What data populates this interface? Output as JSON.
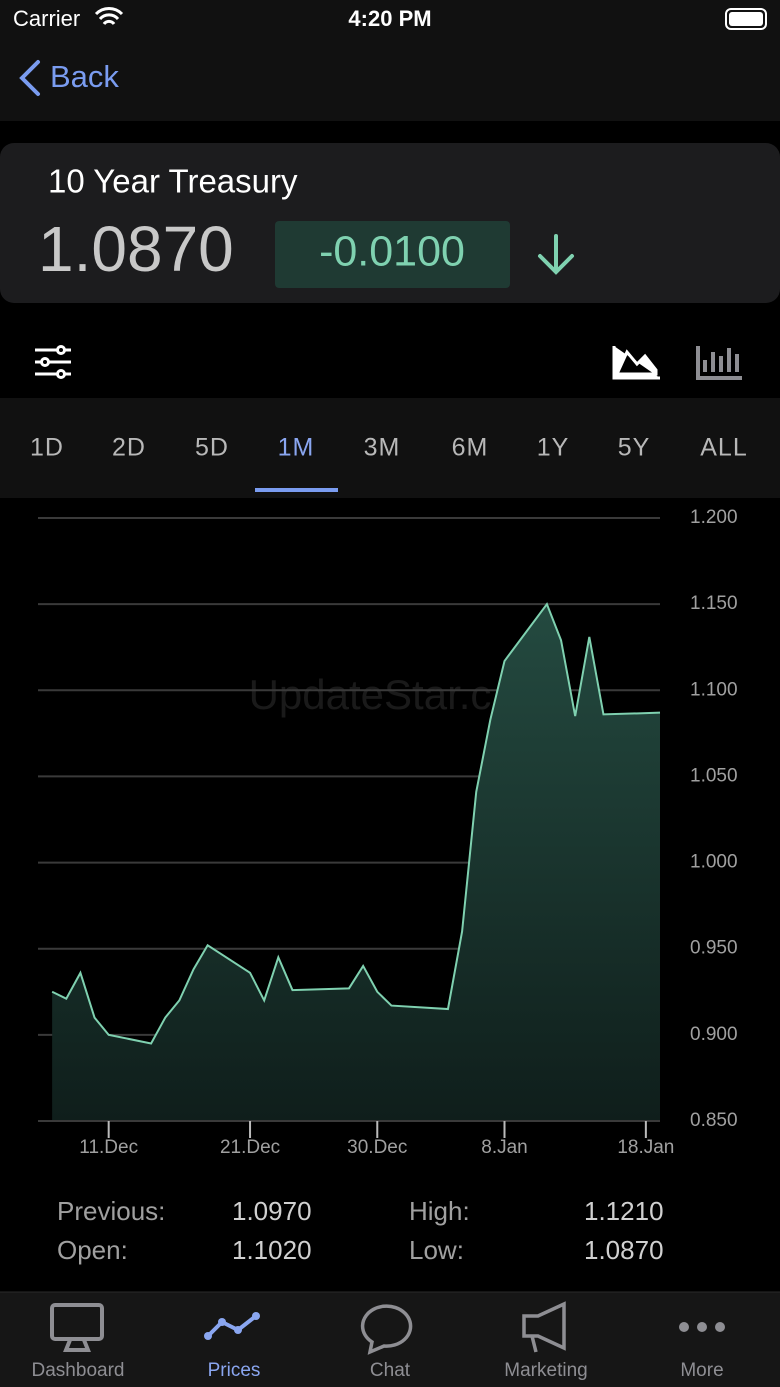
{
  "status_bar": {
    "carrier": "Carrier",
    "time": "4:20 PM"
  },
  "nav": {
    "back": "Back"
  },
  "quote": {
    "name": "10 Year Treasury",
    "price": "1.0870",
    "change": "-0.0100"
  },
  "ranges": [
    "1D",
    "2D",
    "5D",
    "1M",
    "3M",
    "6M",
    "1Y",
    "5Y",
    "ALL"
  ],
  "selected_range": "1M",
  "watermark": "UpdateStar.c",
  "chart_data": {
    "type": "area",
    "color": "#7fd1b0",
    "grid": true,
    "x": [
      "7.Dec",
      "8.Dec",
      "9.Dec",
      "10.Dec",
      "11.Dec",
      "14.Dec",
      "15.Dec",
      "16.Dec",
      "17.Dec",
      "18.Dec",
      "21.Dec",
      "22.Dec",
      "23.Dec",
      "24.Dec",
      "28.Dec",
      "29.Dec",
      "30.Dec",
      "31.Dec",
      "4.Jan",
      "5.Jan",
      "6.Jan",
      "7.Jan",
      "8.Jan",
      "11.Jan",
      "12.Jan",
      "13.Jan",
      "14.Jan",
      "15.Jan",
      "19.Jan"
    ],
    "values": [
      0.925,
      0.921,
      0.936,
      0.91,
      0.9,
      0.895,
      0.91,
      0.92,
      0.938,
      0.952,
      0.936,
      0.92,
      0.945,
      0.926,
      0.927,
      0.94,
      0.925,
      0.917,
      0.915,
      0.96,
      1.041,
      1.083,
      1.117,
      1.15,
      1.129,
      1.085,
      1.131,
      1.086,
      1.087
    ],
    "xlim": [
      "6.Dec",
      "19.Jan"
    ],
    "xticks": [
      "11.Dec",
      "21.Dec",
      "30.Dec",
      "8.Jan",
      "18.Jan"
    ],
    "ylim": [
      0.85,
      1.2
    ],
    "yticks": [
      {
        "value": 0.85,
        "label": "0.850"
      },
      {
        "value": 0.9,
        "label": "0.900"
      },
      {
        "value": 0.95,
        "label": "0.950"
      },
      {
        "value": 1.0,
        "label": "1.000"
      },
      {
        "value": 1.05,
        "label": "1.050"
      },
      {
        "value": 1.1,
        "label": "1.100"
      },
      {
        "value": 1.15,
        "label": "1.150"
      },
      {
        "value": 1.2,
        "label": "1.200"
      }
    ]
  },
  "stats": [
    [
      "Previous:",
      "1.0970",
      "High:",
      "1.1210"
    ],
    [
      "Open:",
      "1.1020",
      "Low:",
      "1.0870"
    ]
  ],
  "tabs": [
    "Dashboard",
    "Prices",
    "Chat",
    "Marketing",
    "More"
  ],
  "selected_tab": "Prices"
}
